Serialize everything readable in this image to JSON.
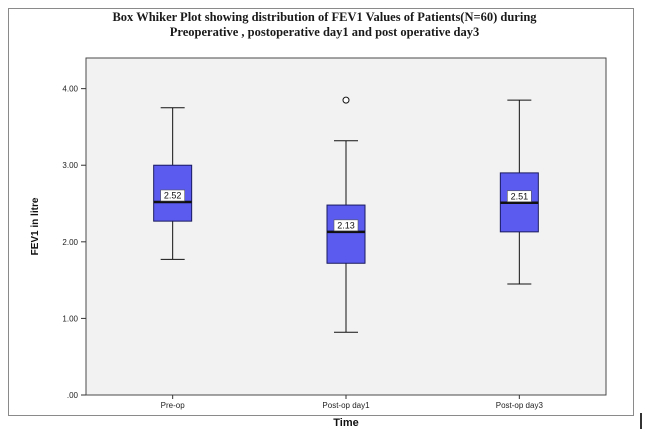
{
  "chart_data": {
    "type": "boxplot",
    "title_lines": [
      "Box Whiker Plot showing distribution of FEV1 Values of Patients(N=60) during",
      "Preoperative , postoperative day1 and post operative day3"
    ],
    "xlabel": "Time",
    "ylabel": "FEV1 in litre",
    "ylim": [
      0,
      4.4
    ],
    "yticks": [
      ".00",
      "1.00",
      "2.00",
      "3.00",
      "4.00"
    ],
    "ytick_values": [
      0,
      1,
      2,
      3,
      4
    ],
    "categories": [
      "Pre-op",
      "Post-op day1",
      "Post-op day3"
    ],
    "boxes": [
      {
        "category": "Pre-op",
        "whisker_low": 1.77,
        "q1": 2.27,
        "median": 2.52,
        "q3": 3.0,
        "whisker_high": 3.75,
        "outliers": [],
        "median_label": "2.52"
      },
      {
        "category": "Post-op day1",
        "whisker_low": 0.82,
        "q1": 1.72,
        "median": 2.13,
        "q3": 2.48,
        "whisker_high": 3.32,
        "outliers": [
          3.85
        ],
        "median_label": "2.13"
      },
      {
        "category": "Post-op day3",
        "whisker_low": 1.45,
        "q1": 2.13,
        "median": 2.51,
        "q3": 2.9,
        "whisker_high": 3.85,
        "outliers": [],
        "median_label": "2.51"
      }
    ],
    "colors": {
      "box_fill": "#5b5bf0",
      "box_stroke": "#1a1a60",
      "plot_bg": "#f2f2f2",
      "page_bg": "#ffffff"
    },
    "grid": false
  }
}
